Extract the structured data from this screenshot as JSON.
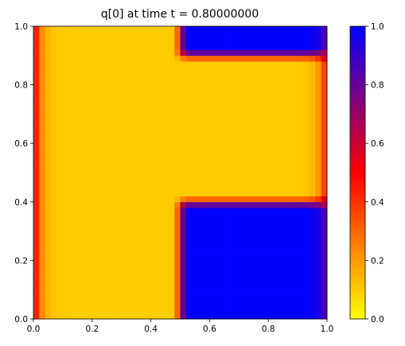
{
  "chart_data": {
    "type": "heatmap",
    "title": "q[0] at time t =     0.80000000",
    "xlabel": "",
    "ylabel": "",
    "xlim": [
      0.0,
      1.0
    ],
    "ylim": [
      0.0,
      1.0
    ],
    "x_ticks": [
      "0.0",
      "0.2",
      "0.4",
      "0.6",
      "0.8",
      "1.0"
    ],
    "y_ticks": [
      "0.0",
      "0.2",
      "0.4",
      "0.6",
      "0.8",
      "1.0"
    ],
    "grid": false,
    "grid_size": [
      50,
      50
    ],
    "field_description": "q = 0.1 background; q = 1.0 in blocks x in [0.5,1.0], y in [0,0.4] and y in [0.9,1.0]; boundary diffusion at x = 0 and x = 1",
    "colorbar": {
      "ticks": [
        "0.0",
        "0.2",
        "0.4",
        "0.6",
        "0.8",
        "1.0"
      ],
      "range": [
        0.0,
        1.0
      ],
      "colormap": [
        "#ffff00",
        "#ff0000",
        "#0000ff"
      ]
    }
  }
}
